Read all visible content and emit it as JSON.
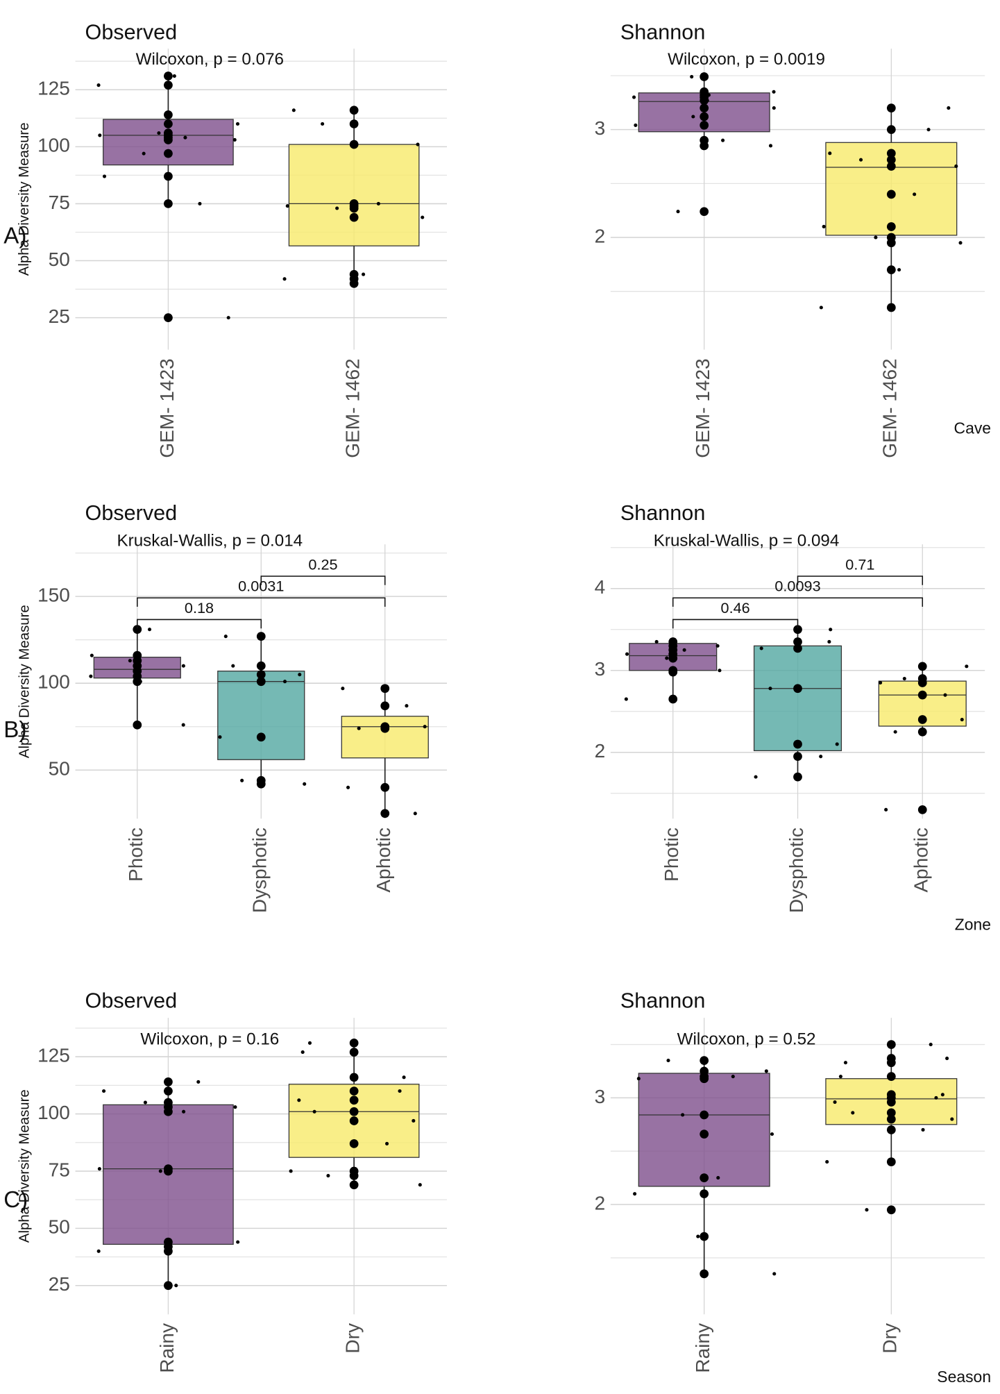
{
  "row_labels": [
    "A)",
    "B)",
    "C)"
  ],
  "chart_data": [
    {
      "type": "box",
      "title": "Observed",
      "test_label": "Wilcoxon, p = 0.076",
      "y_label": "Alpha Diversity Measure",
      "categories": [
        "GEM- 1423",
        "GEM- 1462"
      ],
      "colors": [
        "#7e4f8c",
        "#f7ea6a"
      ],
      "boxes": [
        {
          "min": 75,
          "q1": 92,
          "median": 105,
          "q3": 112,
          "max": 131
        },
        {
          "min": 40,
          "q1": 56.5,
          "median": 75,
          "q3": 101,
          "max": 116
        }
      ],
      "points": [
        [
          131,
          127,
          114,
          110,
          106,
          105,
          104,
          103,
          97,
          87,
          75,
          25
        ],
        [
          116,
          110,
          101,
          75,
          74,
          73,
          69,
          44,
          42,
          40
        ]
      ],
      "ylim": [
        11,
        143
      ],
      "yticks": [
        25,
        50,
        75,
        100,
        125
      ],
      "minor_yticks": [
        37.5,
        62.5,
        87.5,
        112.5,
        137.5
      ],
      "grid": true
    },
    {
      "type": "box",
      "title": "Shannon",
      "test_label": "Wilcoxon, p = 0.0019",
      "x_label": "Cave",
      "categories": [
        "GEM- 1423",
        "GEM- 1462"
      ],
      "colors": [
        "#7e4f8c",
        "#f7ea6a"
      ],
      "boxes": [
        {
          "min": 2.85,
          "q1": 2.98,
          "median": 3.26,
          "q3": 3.34,
          "max": 3.49
        },
        {
          "min": 1.35,
          "q1": 2.02,
          "median": 2.65,
          "q3": 2.88,
          "max": 3.2
        }
      ],
      "points": [
        [
          3.49,
          3.35,
          3.32,
          3.3,
          3.27,
          3.2,
          3.12,
          3.04,
          2.9,
          2.85,
          2.24
        ],
        [
          3.2,
          3.0,
          2.78,
          2.72,
          2.66,
          2.4,
          2.1,
          2.0,
          1.95,
          1.7,
          1.35
        ]
      ],
      "ylim": [
        0.96,
        3.75
      ],
      "yticks": [
        2,
        3
      ],
      "minor_yticks": [
        1.5,
        2.5,
        3.5
      ],
      "grid": true
    },
    {
      "type": "box",
      "title": "Observed",
      "test_label": "Kruskal-Wallis, p = 0.014",
      "y_label": "Alpha Diversity Measure",
      "categories": [
        "Photic",
        "Dysphotic",
        "Aphotic"
      ],
      "colors": [
        "#7e4f8c",
        "#52a8a1",
        "#f7ea6a"
      ],
      "boxes": [
        {
          "min": 76,
          "q1": 103,
          "median": 108,
          "q3": 115,
          "max": 131
        },
        {
          "min": 42,
          "q1": 56,
          "median": 101,
          "q3": 107,
          "max": 127
        },
        {
          "min": 25,
          "q1": 57,
          "median": 75,
          "q3": 81,
          "max": 97
        }
      ],
      "points": [
        [
          131,
          116,
          113,
          110,
          107,
          104,
          101,
          76
        ],
        [
          127,
          110,
          105,
          101,
          69,
          44,
          42
        ],
        [
          97,
          87,
          75,
          74,
          40,
          25
        ]
      ],
      "comparisons": [
        {
          "pair": [
            "Photic",
            "Dysphotic"
          ],
          "label": "0.18"
        },
        {
          "pair": [
            "Photic",
            "Aphotic"
          ],
          "label": "0.0031"
        },
        {
          "pair": [
            "Dysphotic",
            "Aphotic"
          ],
          "label": "0.25"
        }
      ],
      "ylim": [
        22,
        180
      ],
      "yticks": [
        50,
        100,
        150
      ],
      "minor_yticks": [
        75,
        125,
        175
      ],
      "grid": true
    },
    {
      "type": "box",
      "title": "Shannon",
      "test_label": "Kruskal-Wallis, p = 0.094",
      "x_label": "Zone",
      "categories": [
        "Photic",
        "Dysphotic",
        "Aphotic"
      ],
      "colors": [
        "#7e4f8c",
        "#52a8a1",
        "#f7ea6a"
      ],
      "boxes": [
        {
          "min": 2.65,
          "q1": 3.0,
          "median": 3.18,
          "q3": 3.33,
          "max": 3.35
        },
        {
          "min": 1.7,
          "q1": 2.02,
          "median": 2.78,
          "q3": 3.3,
          "max": 3.5
        },
        {
          "min": 2.25,
          "q1": 2.32,
          "median": 2.7,
          "q3": 2.87,
          "max": 3.05
        }
      ],
      "points": [
        [
          3.35,
          3.3,
          3.25,
          3.2,
          3.15,
          3.0,
          2.98,
          2.65
        ],
        [
          3.5,
          3.35,
          3.27,
          2.78,
          2.1,
          1.95,
          1.7
        ],
        [
          3.05,
          2.9,
          2.85,
          2.7,
          2.4,
          2.25,
          1.3
        ]
      ],
      "comparisons": [
        {
          "pair": [
            "Photic",
            "Dysphotic"
          ],
          "label": "0.46"
        },
        {
          "pair": [
            "Photic",
            "Aphotic"
          ],
          "label": "0.0093"
        },
        {
          "pair": [
            "Dysphotic",
            "Aphotic"
          ],
          "label": "0.71"
        }
      ],
      "ylim": [
        1.19,
        4.54
      ],
      "yticks": [
        2,
        3,
        4
      ],
      "minor_yticks": [
        1.5,
        2.5,
        3.5,
        4.5
      ],
      "grid": true
    },
    {
      "type": "box",
      "title": "Observed",
      "test_label": "Wilcoxon, p = 0.16",
      "y_label": "Alpha Diversity Measure",
      "categories": [
        "Rainy",
        "Dry"
      ],
      "colors": [
        "#7e4f8c",
        "#f7ea6a"
      ],
      "boxes": [
        {
          "min": 25,
          "q1": 43,
          "median": 76,
          "q3": 104,
          "max": 114
        },
        {
          "min": 69,
          "q1": 81,
          "median": 101,
          "q3": 113,
          "max": 131
        }
      ],
      "points": [
        [
          114,
          110,
          105,
          103,
          101,
          76,
          75,
          44,
          42,
          40,
          25
        ],
        [
          131,
          127,
          116,
          110,
          106,
          101,
          97,
          87,
          75,
          73,
          69
        ]
      ],
      "ylim": [
        12.4,
        142
      ],
      "yticks": [
        25,
        50,
        75,
        100,
        125
      ],
      "minor_yticks": [
        37.5,
        62.5,
        87.5,
        112.5,
        137.5
      ],
      "grid": true
    },
    {
      "type": "box",
      "title": "Shannon",
      "test_label": "Wilcoxon, p = 0.52",
      "x_label": "Season",
      "categories": [
        "Rainy",
        "Dry"
      ],
      "colors": [
        "#7e4f8c",
        "#f7ea6a"
      ],
      "boxes": [
        {
          "min": 1.35,
          "q1": 2.17,
          "median": 2.84,
          "q3": 3.23,
          "max": 3.35
        },
        {
          "min": 2.4,
          "q1": 2.75,
          "median": 2.99,
          "q3": 3.18,
          "max": 3.5
        }
      ],
      "points": [
        [
          3.35,
          3.25,
          3.2,
          3.18,
          2.84,
          2.66,
          2.25,
          2.1,
          1.7,
          1.35
        ],
        [
          3.5,
          3.37,
          3.33,
          3.2,
          3.03,
          3.0,
          2.96,
          2.86,
          2.8,
          2.7,
          2.4,
          1.95
        ]
      ],
      "ylim": [
        0.97,
        3.75
      ],
      "yticks": [
        2,
        3
      ],
      "minor_yticks": [
        1.5,
        2.5,
        3.5
      ],
      "grid": true
    }
  ]
}
